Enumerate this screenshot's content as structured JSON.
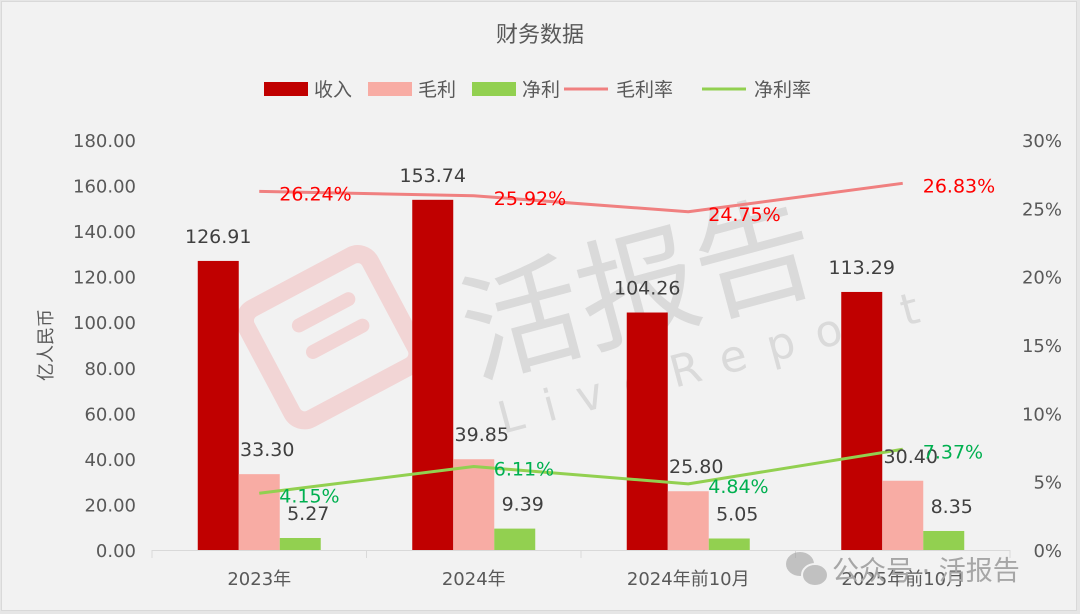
{
  "chart_data": {
    "type": "bar+line",
    "title": "财务数据",
    "categories": [
      "2023年",
      "2024年",
      "2024年前10月",
      "2025年前10月"
    ],
    "series": [
      {
        "name": "收入",
        "type": "bar",
        "axis": "left",
        "color": "#c00000",
        "values": [
          126.91,
          153.74,
          104.26,
          113.29
        ],
        "labels": [
          "126.91",
          "153.74",
          "104.26",
          "113.29"
        ]
      },
      {
        "name": "毛利",
        "type": "bar",
        "axis": "left",
        "color": "#f8aca4",
        "values": [
          33.3,
          39.85,
          25.8,
          30.4
        ],
        "labels": [
          "33.30",
          "39.85",
          "25.80",
          "30.40"
        ]
      },
      {
        "name": "净利",
        "type": "bar",
        "axis": "left",
        "color": "#92d050",
        "values": [
          5.27,
          9.39,
          5.05,
          8.35
        ],
        "labels": [
          "5.27",
          "9.39",
          "5.05",
          "8.35"
        ]
      },
      {
        "name": "毛利率",
        "type": "line",
        "axis": "right",
        "color": "#f08080",
        "values": [
          26.24,
          25.92,
          24.75,
          26.83
        ],
        "labels": [
          "26.24%",
          "25.92%",
          "24.75%",
          "26.83%"
        ],
        "label_color": "#ff0000"
      },
      {
        "name": "净利率",
        "type": "line",
        "axis": "right",
        "color": "#92d050",
        "values": [
          4.15,
          6.11,
          4.84,
          7.37
        ],
        "labels": [
          "4.15%",
          "6.11%",
          "4.84%",
          "7.37%"
        ],
        "label_color": "#00b050"
      }
    ],
    "xlabel": "",
    "ylabel": "亿人民币",
    "ylim": [
      0,
      180
    ],
    "yticks": [
      "0.00",
      "20.00",
      "40.00",
      "60.00",
      "80.00",
      "100.00",
      "120.00",
      "140.00",
      "160.00",
      "180.00"
    ],
    "y2lim": [
      0,
      30
    ],
    "y2ticks": [
      "0%",
      "5%",
      "10%",
      "15%",
      "20%",
      "25%",
      "30%"
    ],
    "grid": false,
    "legend_position": "top"
  },
  "legend": [
    "收入",
    "毛利",
    "净利",
    "毛利率",
    "净利率"
  ],
  "watermark": {
    "brand": "活报告",
    "brand_en": "LiveReport",
    "wechat": "公众号 · 活报告"
  }
}
